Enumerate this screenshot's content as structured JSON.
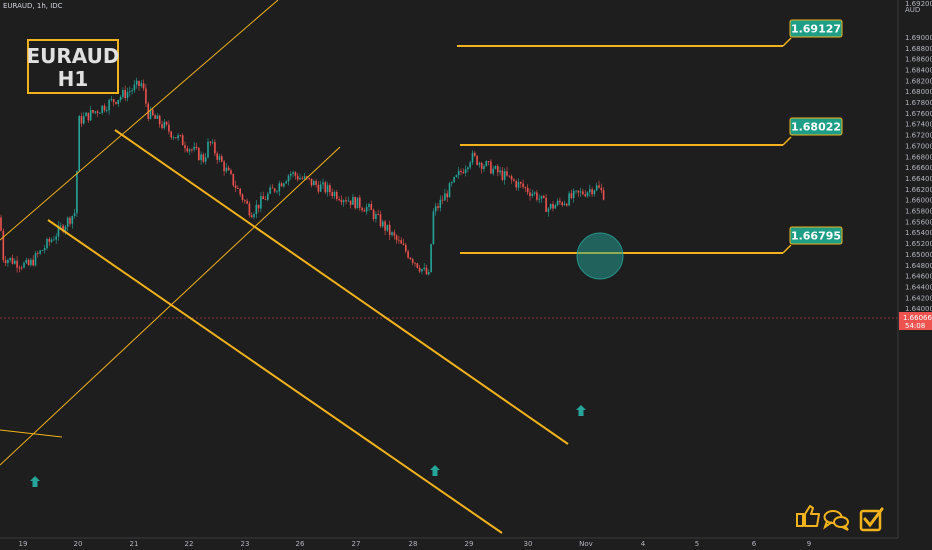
{
  "header": {
    "ticker": "EURAUD, 1h, IDC"
  },
  "colors": {
    "background": "#1e1e1e",
    "up": "#26a69a",
    "down": "#ef5350",
    "line": "#f2b21b",
    "label_bg": "#1e9e86",
    "price_badge": "#ef5350",
    "circle": "#26a69a"
  },
  "symbol_box": {
    "line1": "EURAUD",
    "line2": "H1"
  },
  "price_axis": {
    "currency": "AUD",
    "top_label": "1.69200",
    "labels": [
      "1.69000",
      "1.68800",
      "1.68600",
      "1.68400",
      "1.68200",
      "1.68000",
      "1.67800",
      "1.67600",
      "1.67400",
      "1.67200",
      "1.67000",
      "1.66800",
      "1.66600",
      "1.66400",
      "1.66200",
      "1.66000",
      "1.65800",
      "1.65600",
      "1.65400",
      "1.65200",
      "1.65000",
      "1.64800",
      "1.64600",
      "1.64400",
      "1.64200",
      "1.64000",
      "1.63800"
    ],
    "current_price": "1.66066",
    "countdown": "54:08"
  },
  "time_axis": {
    "labels": [
      "19",
      "20",
      "21",
      "22",
      "23",
      "26",
      "27",
      "28",
      "29",
      "30",
      "Nov",
      "4",
      "5",
      "6",
      "9"
    ]
  },
  "levels": [
    {
      "price": 1.69127,
      "label": "1.69127"
    },
    {
      "price": 1.68022,
      "label": "1.68022"
    },
    {
      "price": 1.66795,
      "label": "1.66795"
    }
  ],
  "chart_data": {
    "type": "candlestick",
    "symbol": "EURAUD",
    "timeframe": "1h",
    "source": "IDC",
    "ylim": [
      1.6365,
      1.6925
    ],
    "grid": false,
    "key_points": [
      {
        "x": "19",
        "y": 1.6495
      },
      {
        "x": "19",
        "y": 1.6478
      },
      {
        "x": "20",
        "y": 1.658
      },
      {
        "x": "20",
        "y": 1.6745
      },
      {
        "x": "21",
        "y": 1.6815
      },
      {
        "x": "21",
        "y": 1.676
      },
      {
        "x": "22",
        "y": 1.6675
      },
      {
        "x": "22",
        "y": 1.6708
      },
      {
        "x": "23",
        "y": 1.6578
      },
      {
        "x": "26",
        "y": 1.665
      },
      {
        "x": "27",
        "y": 1.6585
      },
      {
        "x": "28",
        "y": 1.6458
      },
      {
        "x": "28",
        "y": 1.6575
      },
      {
        "x": "29",
        "y": 1.668
      },
      {
        "x": "30",
        "y": 1.661
      },
      {
        "x": "30",
        "y": 1.6585
      },
      {
        "x": "Nov",
        "y": 1.6625
      },
      {
        "x": "Nov",
        "y": 1.6607
      }
    ],
    "last_price": 1.66066,
    "resistance_levels": [
      1.69127,
      1.68022,
      1.66795
    ]
  }
}
